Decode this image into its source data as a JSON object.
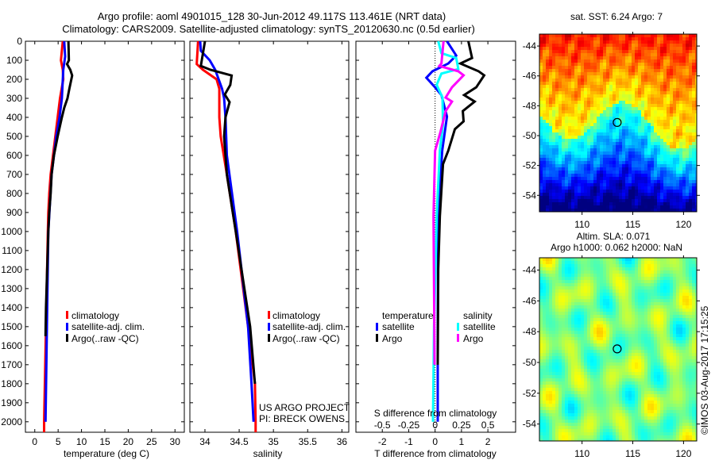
{
  "title": {
    "line1": "Argo profile: aoml 4901015_128 30-Jun-2012 49.117S 113.461E (NRT data)",
    "line2": "Climatology: CARS2009. Satellite-adjusted climatology: synTS_20120630.nc (0.5d earlier)"
  },
  "colors": {
    "climatology": "#ff0000",
    "satellite": "#0000ff",
    "argo": "#000000",
    "sal_satellite": "#00ffff",
    "sal_argo": "#ff00ff"
  },
  "chart_data": [
    {
      "type": "line",
      "id": "temperature",
      "xlabel": "temperature (deg C)",
      "ylabel": "",
      "xlim": [
        -2,
        32
      ],
      "ylim": [
        2055,
        0
      ],
      "xticks": [
        0,
        5,
        10,
        15,
        20,
        25,
        30
      ],
      "yticks": [
        0,
        100,
        200,
        300,
        400,
        500,
        600,
        700,
        800,
        900,
        1000,
        1100,
        1200,
        1300,
        1400,
        1500,
        1600,
        1700,
        1800,
        1900,
        2000
      ],
      "legend": [
        "climatology",
        "satellite-adj. clim.",
        "Argo(..raw -QC)"
      ],
      "series": [
        {
          "name": "climatology",
          "depth": [
            0,
            100,
            150,
            200,
            300,
            400,
            500,
            600,
            700,
            800,
            900,
            1000,
            1500,
            2000,
            2055
          ],
          "values": [
            6.0,
            5.6,
            6.0,
            6.1,
            5.4,
            4.9,
            4.4,
            3.9,
            3.4,
            3.1,
            2.9,
            2.8,
            2.4,
            2.0,
            2.0
          ]
        },
        {
          "name": "satellite-adj. clim.",
          "depth": [
            0,
            80,
            150,
            300,
            400,
            500,
            700,
            1000,
            1500,
            2000
          ],
          "values": [
            6.3,
            6.5,
            6.1,
            5.8,
            5.3,
            4.6,
            3.6,
            2.9,
            2.6,
            2.3
          ]
        },
        {
          "name": "Argo(..raw -QC)",
          "depth": [
            0,
            100,
            120,
            150,
            180,
            250,
            300,
            350,
            400,
            500,
            600,
            700,
            800,
            900,
            1000,
            1400,
            1550
          ],
          "values": [
            7.2,
            7.3,
            6.9,
            7.6,
            8.0,
            7.4,
            7.0,
            6.3,
            5.8,
            4.9,
            4.1,
            3.6,
            3.4,
            3.1,
            2.9,
            2.4,
            2.3
          ]
        }
      ]
    },
    {
      "type": "line",
      "id": "salinity",
      "xlabel": "salinity",
      "xlim": [
        33.78,
        36.1
      ],
      "ylim": [
        2055,
        0
      ],
      "xticks": [
        34,
        34.5,
        35,
        35.5,
        36
      ],
      "legend": [
        "climatology",
        "satellite-adj. clim.",
        "Argo(..raw -QC)"
      ],
      "annotation": [
        "US ARGO PROJECT",
        "PI: BRECK OWENS"
      ],
      "series": [
        {
          "name": "climatology",
          "depth": [
            0,
            120,
            150,
            200,
            250,
            400,
            500,
            700,
            1000,
            1500,
            1800,
            2000,
            2055
          ],
          "values": [
            33.9,
            33.88,
            33.97,
            34.17,
            34.21,
            34.21,
            34.23,
            34.32,
            34.45,
            34.63,
            34.73,
            34.74,
            34.74
          ]
        },
        {
          "name": "satellite-adj. clim.",
          "depth": [
            0,
            50,
            100,
            150,
            250,
            300,
            400,
            600,
            1000,
            1500,
            1800,
            2000
          ],
          "values": [
            33.93,
            33.94,
            34.07,
            34.15,
            34.25,
            34.28,
            34.3,
            34.32,
            34.47,
            34.63,
            34.68,
            34.71
          ]
        },
        {
          "name": "Argo(..raw -QC)",
          "depth": [
            0,
            130,
            150,
            180,
            230,
            280,
            320,
            400,
            500,
            700,
            1000,
            1500,
            1800
          ],
          "values": [
            34.0,
            33.94,
            34.08,
            34.39,
            34.37,
            34.29,
            34.36,
            34.3,
            34.28,
            34.32,
            34.45,
            34.66,
            34.73
          ]
        }
      ]
    },
    {
      "type": "line",
      "id": "differences",
      "xlabel": "T difference from climatology",
      "xlabel2": "S difference from climatology",
      "xlim": [
        -3,
        3.05
      ],
      "ylim": [
        2055,
        0
      ],
      "xticks": [
        -2,
        -1,
        0,
        1,
        2
      ],
      "xticks2": [
        -0.5,
        -0.25,
        0,
        0.25,
        0.5
      ],
      "xtick2_labels": [
        "-0.5",
        "-0.25",
        "0",
        "0.25",
        "0.5"
      ],
      "legend": {
        "temperature_title": "temperature",
        "salinity_title": "salinity",
        "satellite": "satellite",
        "argo": "Argo"
      },
      "series": [
        {
          "name": "T satellite",
          "var": "T",
          "depth": [
            0,
            75,
            117,
            158,
            192,
            242,
            283,
            396,
            575,
            921,
            1500,
            2000
          ],
          "values": [
            0.45,
            0.8,
            0.5,
            -0.1,
            -0.33,
            0.0,
            0.24,
            0.45,
            0.27,
            0.12,
            0.1,
            0.1
          ]
        },
        {
          "name": "T Argo",
          "var": "T",
          "depth": [
            0,
            88,
            117,
            158,
            179,
            242,
            283,
            317,
            367,
            421,
            462,
            575,
            646,
            783,
            921,
            1200,
            1700
          ],
          "values": [
            1.26,
            1.4,
            0.96,
            1.65,
            1.86,
            1.56,
            1.1,
            1.5,
            1.05,
            1.08,
            0.75,
            0.5,
            0.3,
            0.24,
            0.18,
            0.12,
            0.1
          ]
        },
        {
          "name": "S satellite",
          "var": "S",
          "depth": [
            0,
            63,
            88,
            146,
            170,
            229,
            296,
            437,
            575,
            921,
            1500,
            2000
          ],
          "values": [
            0.03,
            0.06,
            0.2,
            0.22,
            0.06,
            0.015,
            0.07,
            0.075,
            0.045,
            0.015,
            -0.01,
            -0.02
          ]
        },
        {
          "name": "S Argo",
          "var": "S",
          "depth": [
            0,
            117,
            130,
            158,
            179,
            242,
            296,
            317,
            367,
            479,
            575,
            921,
            1300,
            1700
          ],
          "values": [
            0.08,
            0.06,
            0.04,
            0.22,
            0.27,
            0.16,
            0.1,
            0.16,
            0.1,
            0.05,
            0.0,
            -0.015,
            -0.01,
            -0.005
          ]
        }
      ]
    },
    {
      "type": "heatmap",
      "id": "sst-map",
      "title": "sat. SST: 6.24  Argo: 7",
      "xlim": [
        105.8,
        121.3
      ],
      "ylim": [
        -55.1,
        -43.2
      ],
      "xticks": [
        110,
        115,
        120
      ],
      "yticks": [
        -44,
        -46,
        -48,
        -50,
        -52,
        -54
      ],
      "marker": {
        "lon": 113.461,
        "lat": -49.117
      }
    },
    {
      "type": "heatmap",
      "id": "sla-map",
      "title": "Altim. SLA: 0.071",
      "subtitle": "Argo h1000: 0.062 h2000: NaN",
      "xlim": [
        105.8,
        121.3
      ],
      "ylim": [
        -55.1,
        -43.2
      ],
      "xticks": [
        110,
        115,
        120
      ],
      "yticks": [
        -44,
        -46,
        -48,
        -50,
        -52,
        -54
      ],
      "marker": {
        "lon": 113.461,
        "lat": -49.117
      }
    }
  ],
  "credit": "©IMOS 03-Aug-2017 17:15:25"
}
